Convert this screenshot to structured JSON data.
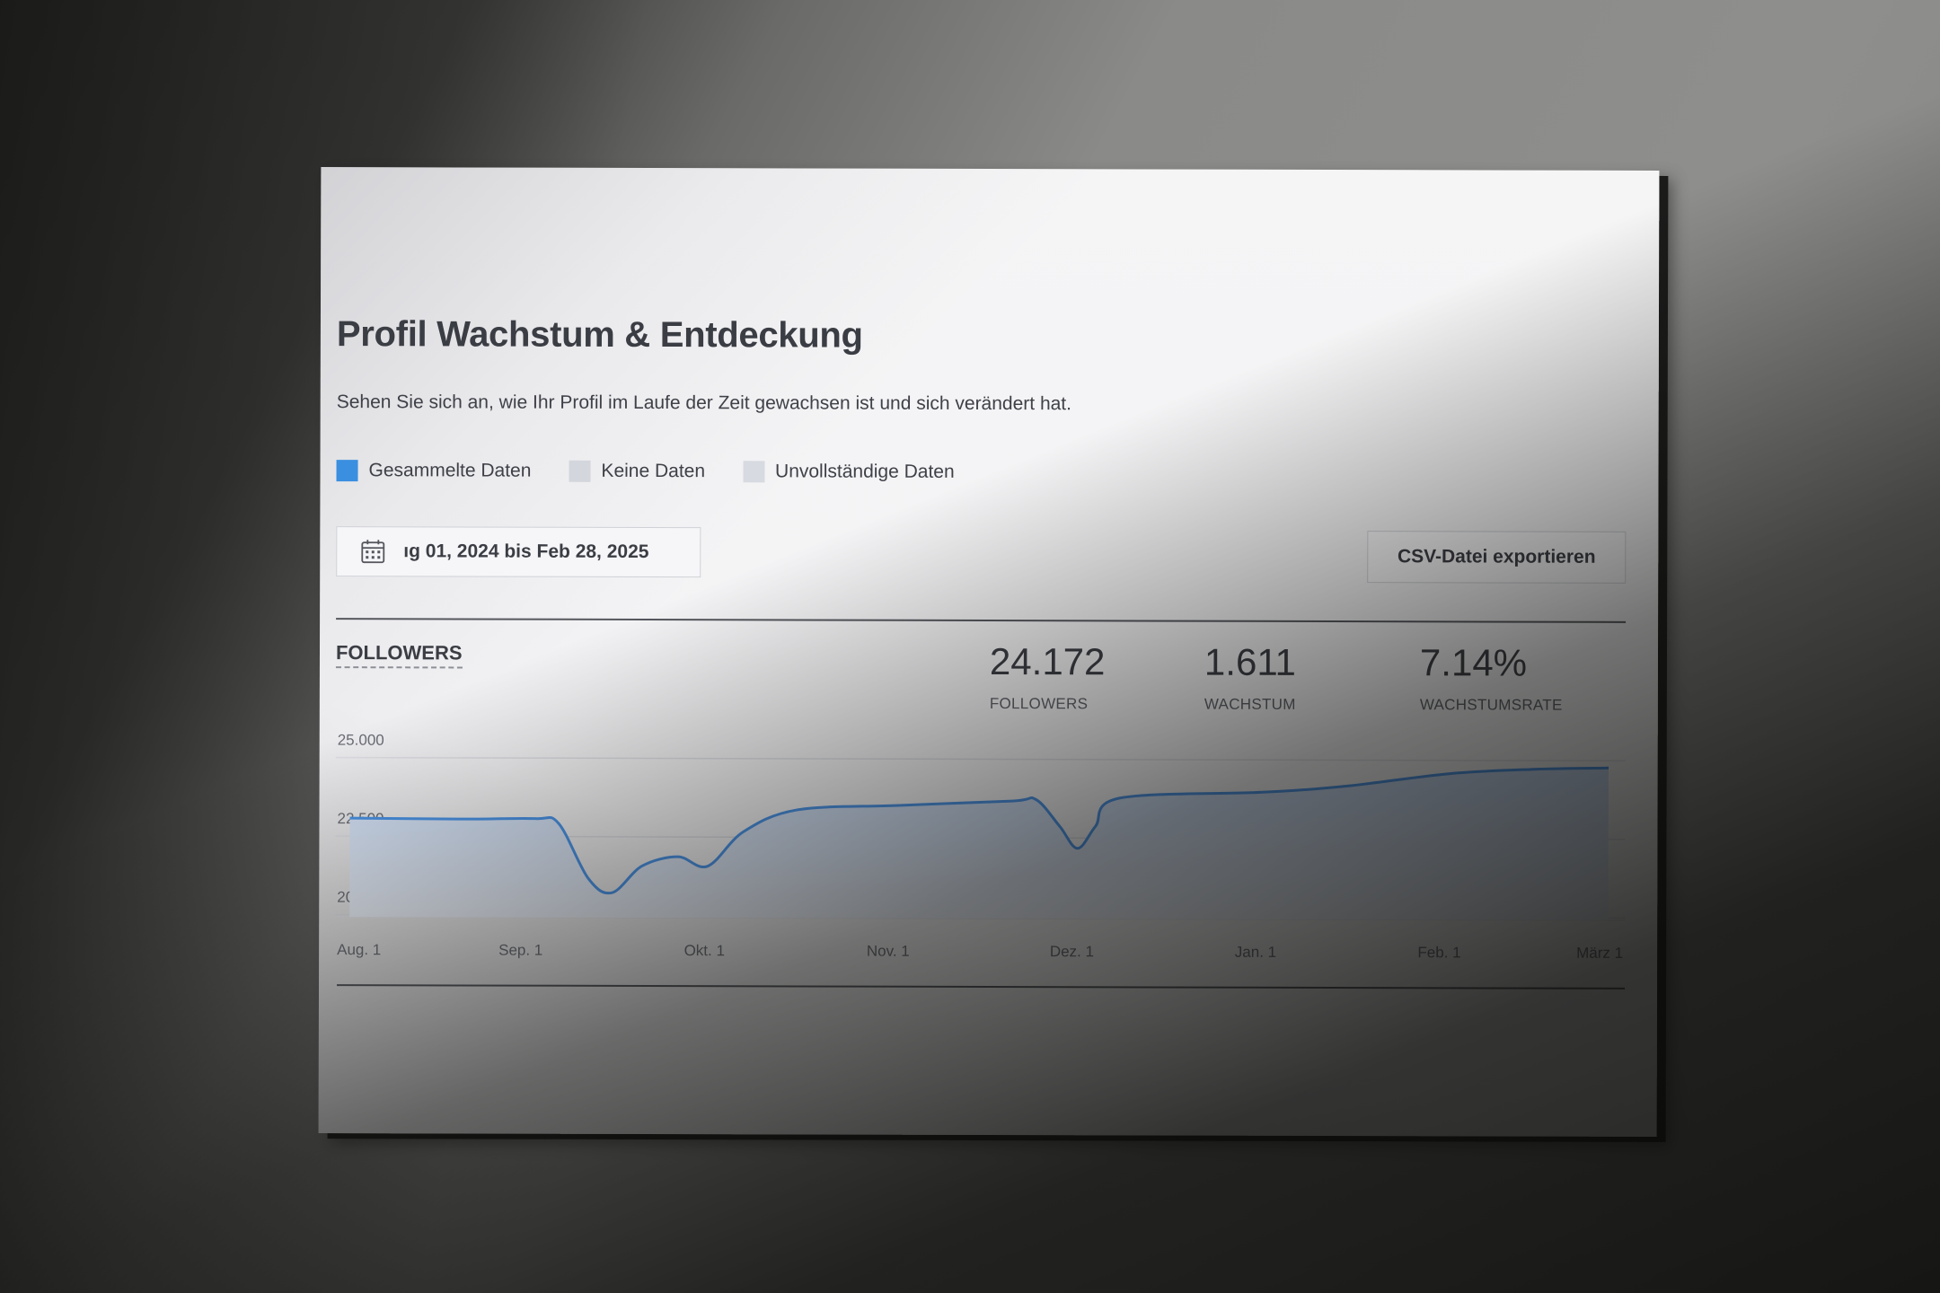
{
  "page": {
    "title": "Profil Wachstum & Entdeckung",
    "subtitle": "Sehen Sie sich an, wie Ihr Profil im Laufe der Zeit gewachsen ist und sich verändert hat."
  },
  "legend": {
    "items": [
      {
        "label": "Gesammelte Daten",
        "color": "#3a8fe0"
      },
      {
        "label": "Keine Daten",
        "color": "#d3d6dc"
      },
      {
        "label": "Unvollständige Daten",
        "color": "#d7dae0"
      }
    ]
  },
  "toolbar": {
    "date_range": "ıg 01, 2024 bis Feb 28, 2025",
    "calendar_icon": "calendar-icon",
    "export_label": "CSV-Datei exportieren"
  },
  "section": {
    "label": "FOLLOWERS"
  },
  "stats": [
    {
      "value": "24.172",
      "label": "FOLLOWERS"
    },
    {
      "value": "1.611",
      "label": "WACHSTUM"
    },
    {
      "value": "7.14%",
      "label": "WACHSTUMSRATE"
    }
  ],
  "chart_data": {
    "type": "area",
    "x_tick_labels": [
      "Aug. 1",
      "Sep. 1",
      "Okt. 1",
      "Nov. 1",
      "Dez. 1",
      "Jan. 1",
      "Feb. 1",
      "März 1"
    ],
    "y_tick_labels": [
      "25.000",
      "22.500",
      "20.000"
    ],
    "y_ticks": [
      25000,
      22500,
      20000
    ],
    "ylim": [
      19500,
      25500
    ],
    "x_range": [
      "2024-08-01",
      "2025-03-01"
    ],
    "line_color": "#4a93e6",
    "fill_color": "#c9daf4",
    "grid": true,
    "series": [
      {
        "points": [
          {
            "x": "2024-08-01",
            "y": 22500
          },
          {
            "x": "2024-08-20",
            "y": 22480
          },
          {
            "x": "2024-09-01",
            "y": 22500
          },
          {
            "x": "2024-09-05",
            "y": 22350
          },
          {
            "x": "2024-09-10",
            "y": 20600
          },
          {
            "x": "2024-09-14",
            "y": 20150
          },
          {
            "x": "2024-09-19",
            "y": 21000
          },
          {
            "x": "2024-09-25",
            "y": 21300
          },
          {
            "x": "2024-09-30",
            "y": 21000
          },
          {
            "x": "2024-10-06",
            "y": 22100
          },
          {
            "x": "2024-10-15",
            "y": 22800
          },
          {
            "x": "2024-11-01",
            "y": 22950
          },
          {
            "x": "2024-11-20",
            "y": 23100
          },
          {
            "x": "2024-11-24",
            "y": 23150
          },
          {
            "x": "2024-11-28",
            "y": 22300
          },
          {
            "x": "2024-12-01",
            "y": 21600
          },
          {
            "x": "2024-12-04",
            "y": 22300
          },
          {
            "x": "2024-12-08",
            "y": 23200
          },
          {
            "x": "2025-01-01",
            "y": 23400
          },
          {
            "x": "2025-01-15",
            "y": 23600
          },
          {
            "x": "2025-02-01",
            "y": 24000
          },
          {
            "x": "2025-02-15",
            "y": 24150
          },
          {
            "x": "2025-02-28",
            "y": 24200
          }
        ]
      }
    ]
  }
}
